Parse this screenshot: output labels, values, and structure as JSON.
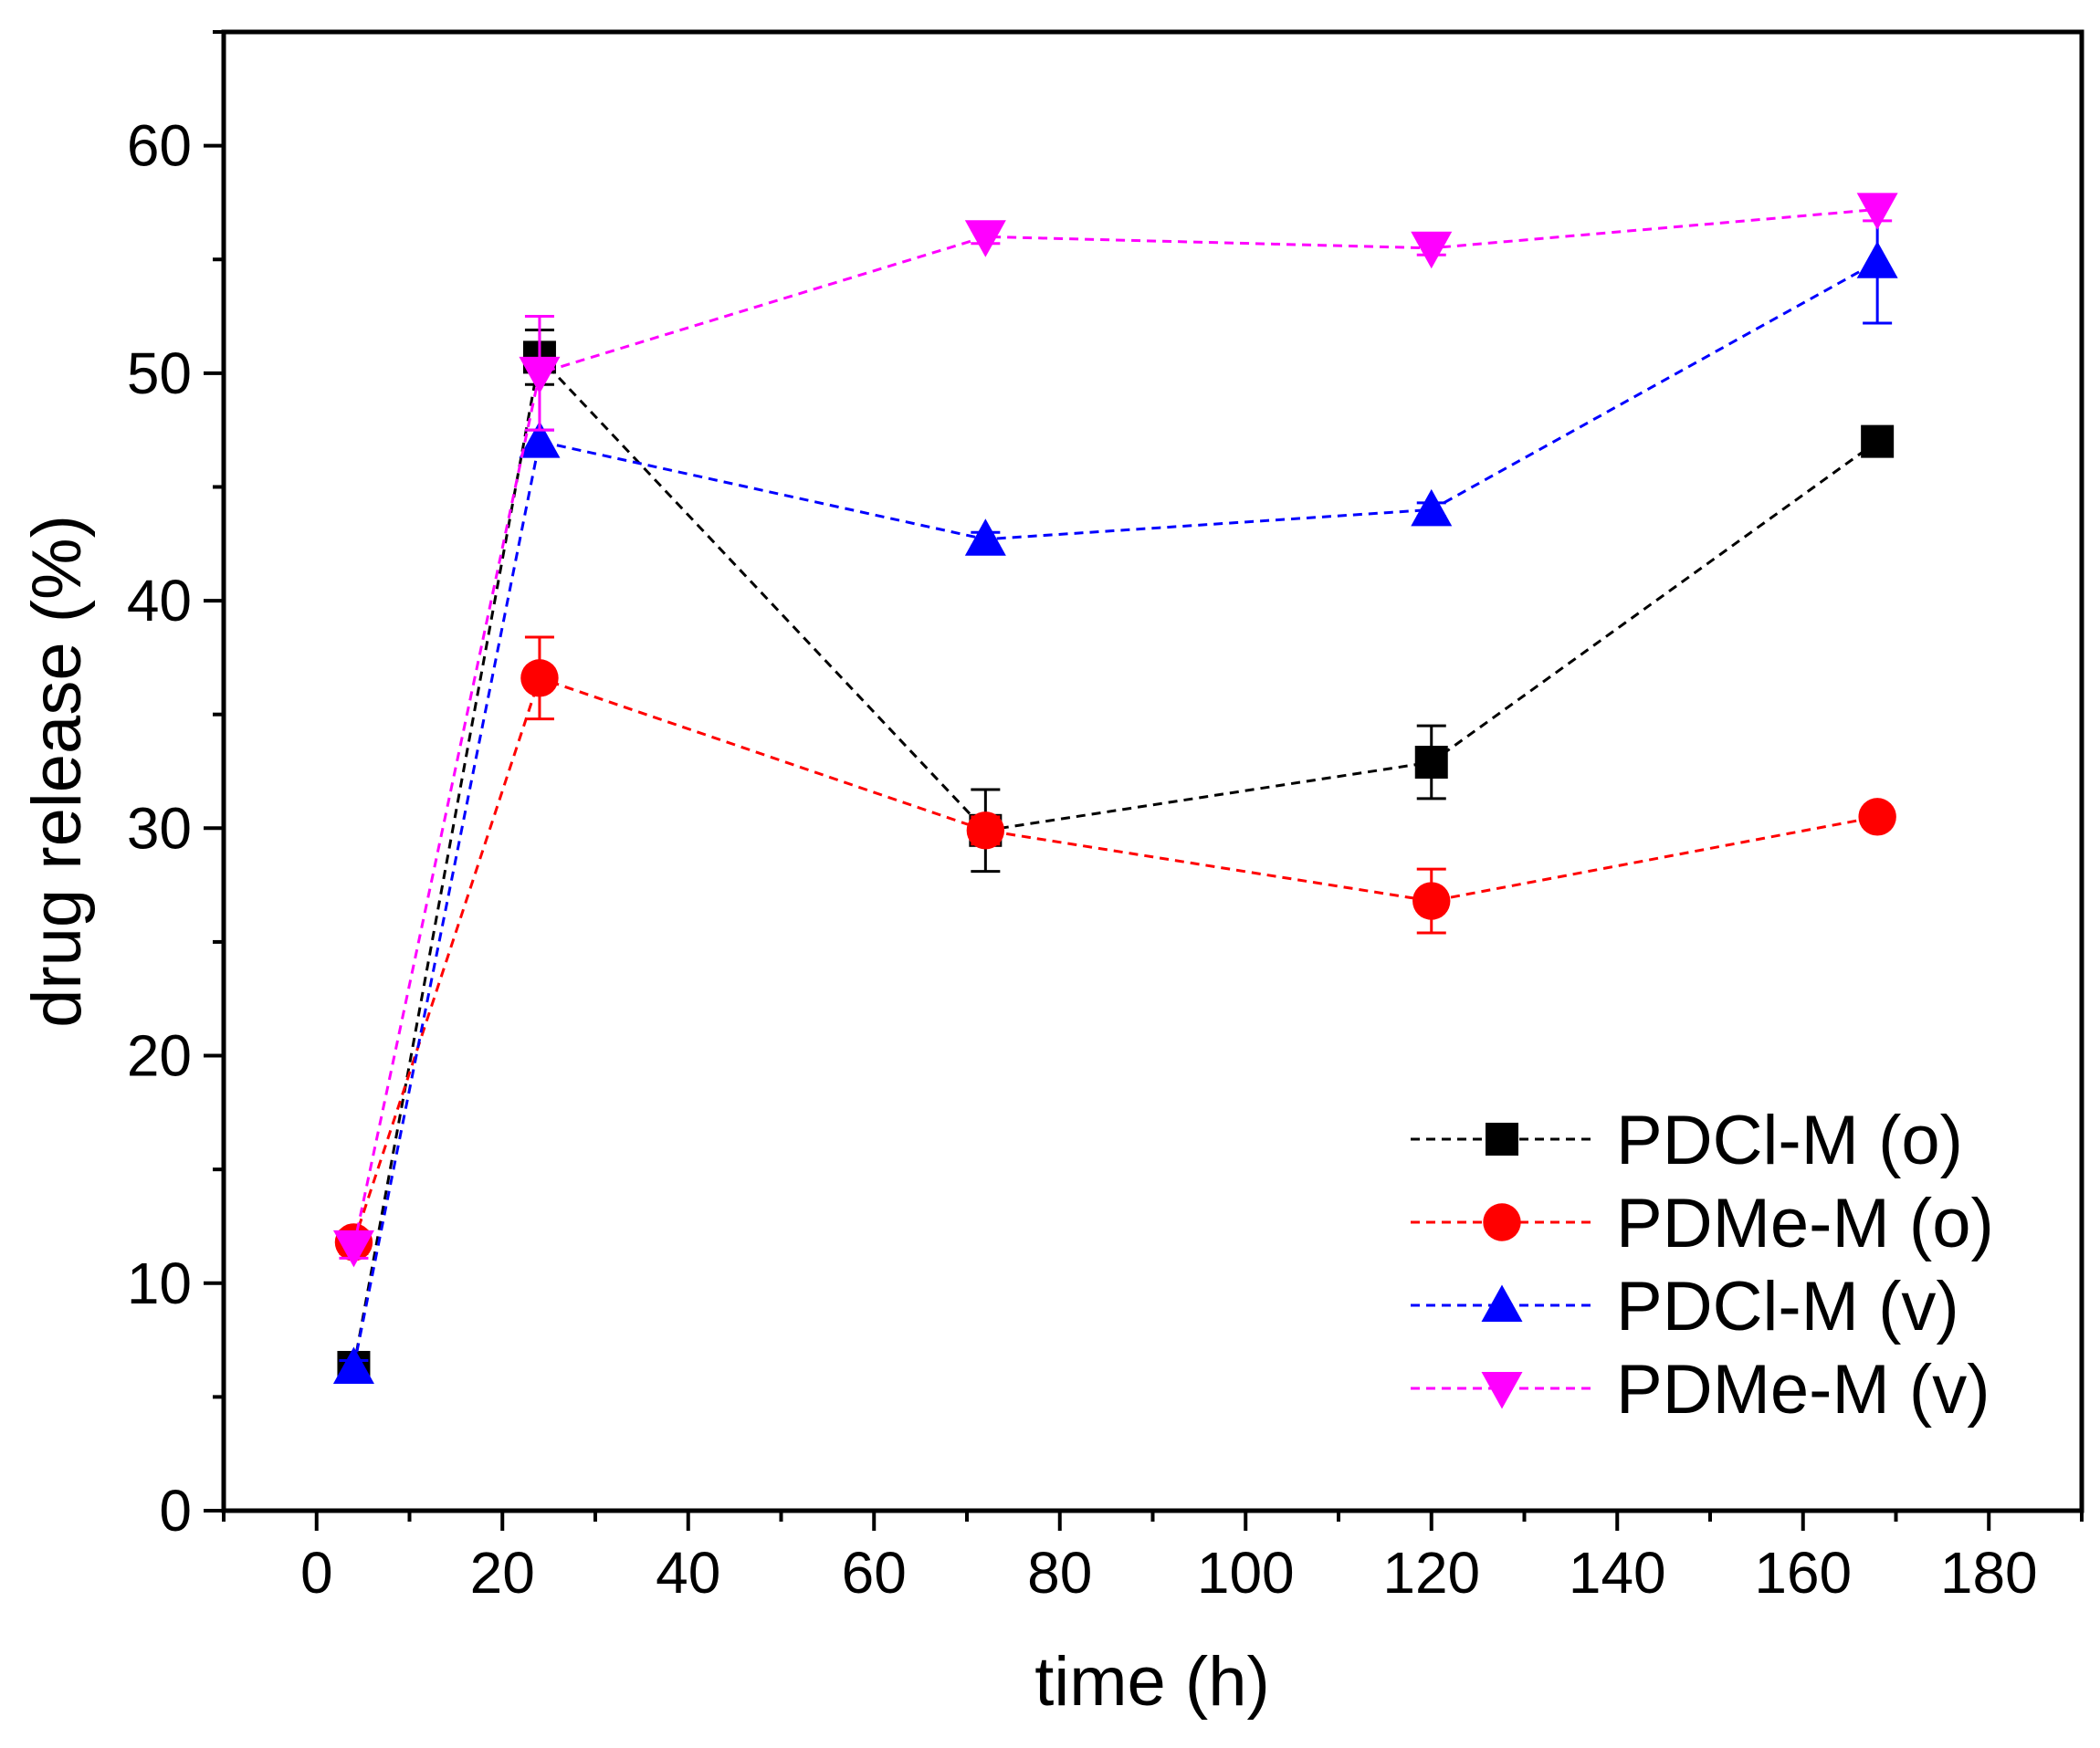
{
  "chart_data": {
    "type": "line",
    "title": "",
    "xlabel": "time (h)",
    "ylabel": "drug release (%)",
    "xlim": [
      -10,
      190
    ],
    "ylim": [
      0,
      65
    ],
    "xticks": [
      0,
      20,
      40,
      60,
      80,
      100,
      120,
      140,
      160,
      180
    ],
    "xtick_labels": [
      "0",
      "20",
      "40",
      "60",
      "80",
      "100",
      "120",
      "140",
      "160",
      "180"
    ],
    "yticks": [
      0,
      10,
      20,
      30,
      40,
      50,
      60
    ],
    "ytick_labels": [
      "0",
      "10",
      "20",
      "30",
      "40",
      "50",
      "60"
    ],
    "grid": false,
    "legend_position": "bottom-right",
    "series": [
      {
        "name": "PDCl-M (o)",
        "color": "#000000",
        "marker": "square",
        "x": [
          4,
          24,
          72,
          120,
          168
        ],
        "y": [
          6.3,
          50.7,
          29.9,
          32.9,
          47.0
        ],
        "err": [
          0.3,
          1.2,
          1.8,
          1.6,
          0.5
        ]
      },
      {
        "name": "PDMe-M (o)",
        "color": "#ff0000",
        "marker": "circle",
        "x": [
          4,
          24,
          72,
          120,
          168
        ],
        "y": [
          11.8,
          36.6,
          29.9,
          26.8,
          30.5
        ],
        "err": [
          0.5,
          1.8,
          0.6,
          1.4,
          0.4
        ]
      },
      {
        "name": "PDCl-M (v)",
        "color": "#0000ff",
        "marker": "triangle-up",
        "x": [
          4,
          24,
          72,
          120,
          168
        ],
        "y": [
          6.3,
          47.0,
          42.7,
          44.0,
          54.9
        ],
        "err": [
          0.3,
          0.5,
          0.3,
          0.3,
          2.7
        ]
      },
      {
        "name": "PDMe-M (v)",
        "color": "#ff00ff",
        "marker": "triangle-down",
        "x": [
          4,
          24,
          72,
          120,
          168
        ],
        "y": [
          11.6,
          50.0,
          56.0,
          55.5,
          57.2
        ],
        "err": [
          0.5,
          2.5,
          0.3,
          0.3,
          0.5
        ]
      }
    ]
  }
}
